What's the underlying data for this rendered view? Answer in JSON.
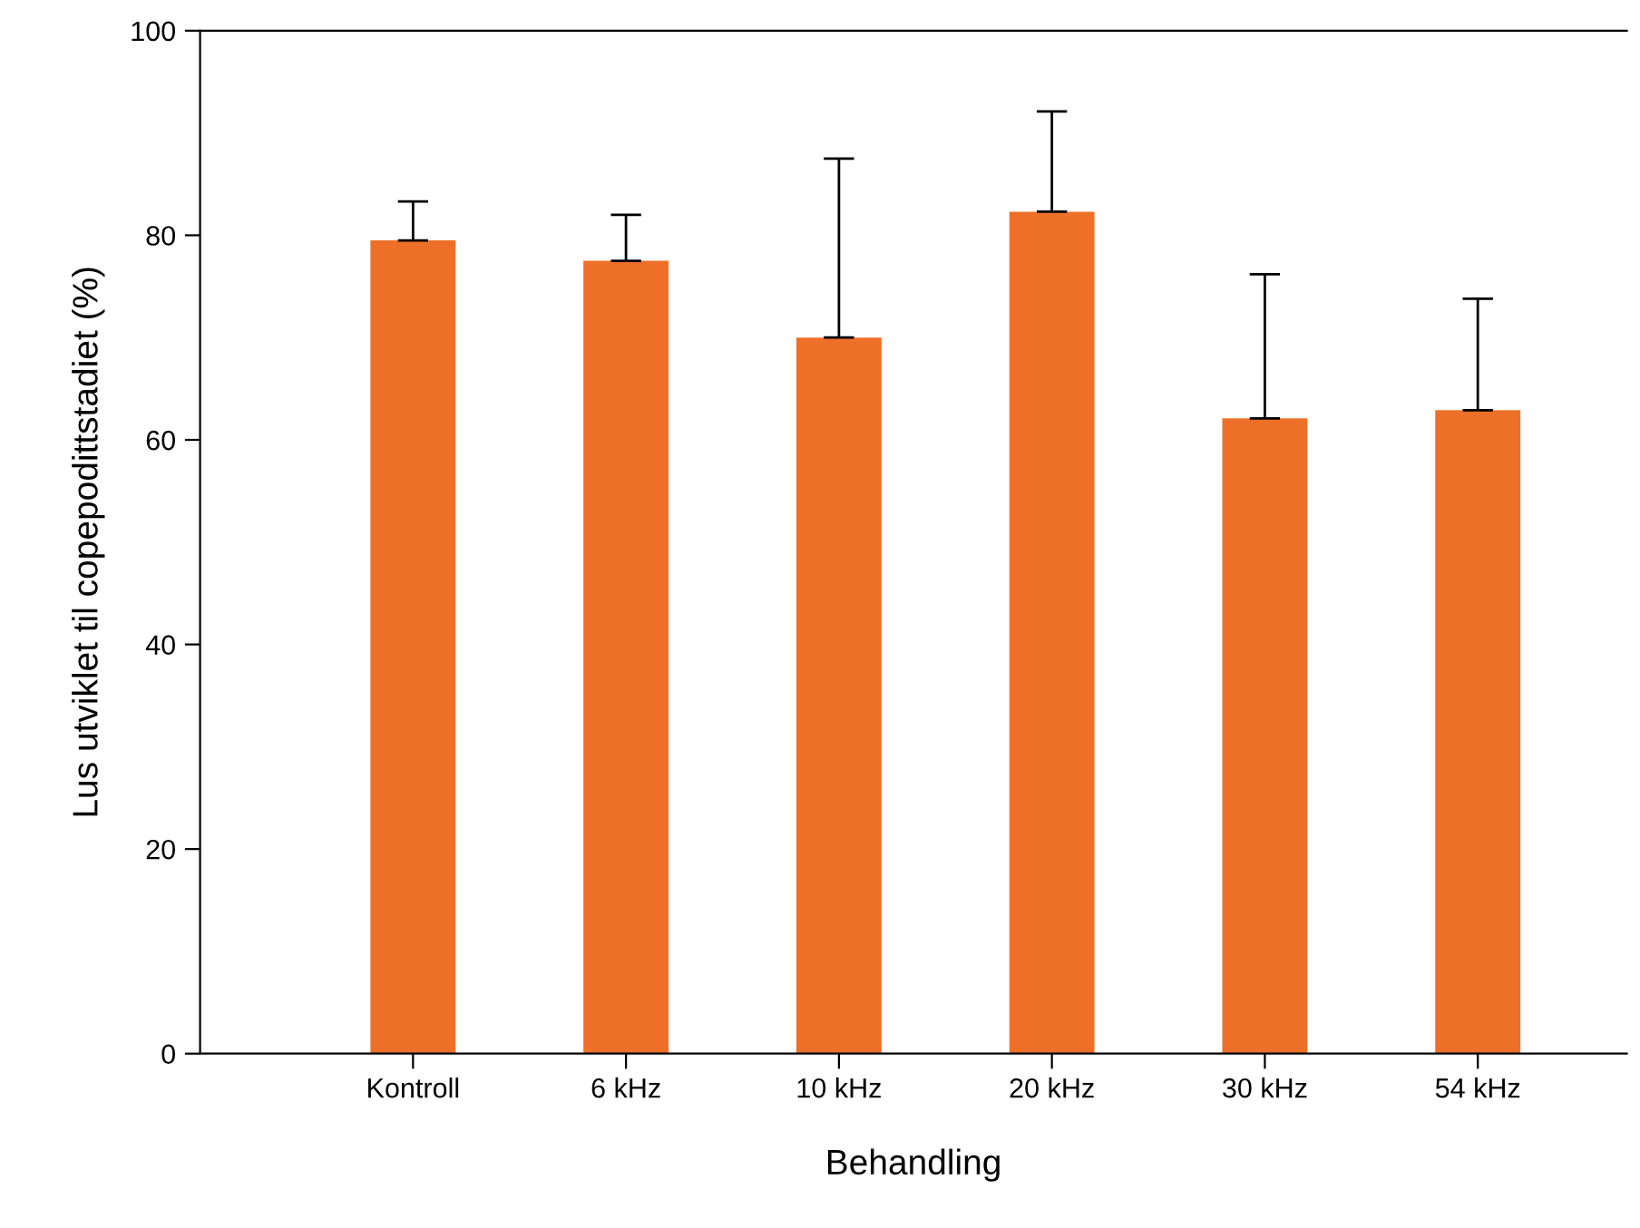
{
  "chart_data": {
    "type": "bar",
    "xlabel": "Behandling",
    "ylabel": "Lus utviklet til copepodittstadiet (%)",
    "categories": [
      "Kontroll",
      "6 kHz",
      "10 kHz",
      "20 kHz",
      "30 kHz",
      "54 kHz"
    ],
    "values": [
      79.5,
      77.5,
      70.0,
      82.3,
      62.1,
      62.9
    ],
    "errors": [
      [
        79.5,
        83.3
      ],
      [
        77.5,
        82.0
      ],
      [
        70.0,
        87.5
      ],
      [
        82.3,
        92.1
      ],
      [
        62.1,
        76.2
      ],
      [
        62.9,
        73.8
      ]
    ],
    "color": "#ee7028",
    "ylim": [
      0,
      100
    ],
    "yticks": [
      0,
      20,
      40,
      60,
      80,
      100
    ],
    "grid": false,
    "legend": false
  }
}
